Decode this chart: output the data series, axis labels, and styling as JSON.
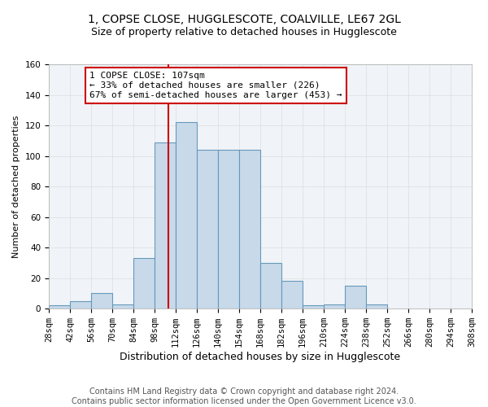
{
  "title": "1, COPSE CLOSE, HUGGLESCOTE, COALVILLE, LE67 2GL",
  "subtitle": "Size of property relative to detached houses in Hugglescote",
  "xlabel": "Distribution of detached houses by size in Hugglescote",
  "ylabel": "Number of detached properties",
  "bin_edges": [
    28,
    42,
    56,
    70,
    84,
    98,
    112,
    126,
    140,
    154,
    168,
    182,
    196,
    210,
    224,
    238,
    252,
    266,
    280,
    294,
    308
  ],
  "bin_counts": [
    2,
    5,
    10,
    3,
    33,
    109,
    122,
    104,
    104,
    104,
    30,
    18,
    2,
    3,
    15,
    3,
    0,
    0,
    0,
    0
  ],
  "bar_color": "#c8d9ea",
  "bar_edge_color": "#6699bb",
  "property_size": 107,
  "vline_color": "#cc0000",
  "annotation_text": "1 COPSE CLOSE: 107sqm\n← 33% of detached houses are smaller (226)\n67% of semi-detached houses are larger (453) →",
  "annotation_box_color": "white",
  "annotation_box_edge_color": "#cc0000",
  "ylim": [
    0,
    160
  ],
  "yticks": [
    0,
    20,
    40,
    60,
    80,
    100,
    120,
    140,
    160
  ],
  "grid_color": "#dddddd",
  "footer_text": "Contains HM Land Registry data © Crown copyright and database right 2024.\nContains public sector information licensed under the Open Government Licence v3.0.",
  "title_fontsize": 10,
  "subtitle_fontsize": 9,
  "xlabel_fontsize": 9,
  "ylabel_fontsize": 8,
  "tick_fontsize": 7.5,
  "footer_fontsize": 7,
  "annot_fontsize": 8
}
